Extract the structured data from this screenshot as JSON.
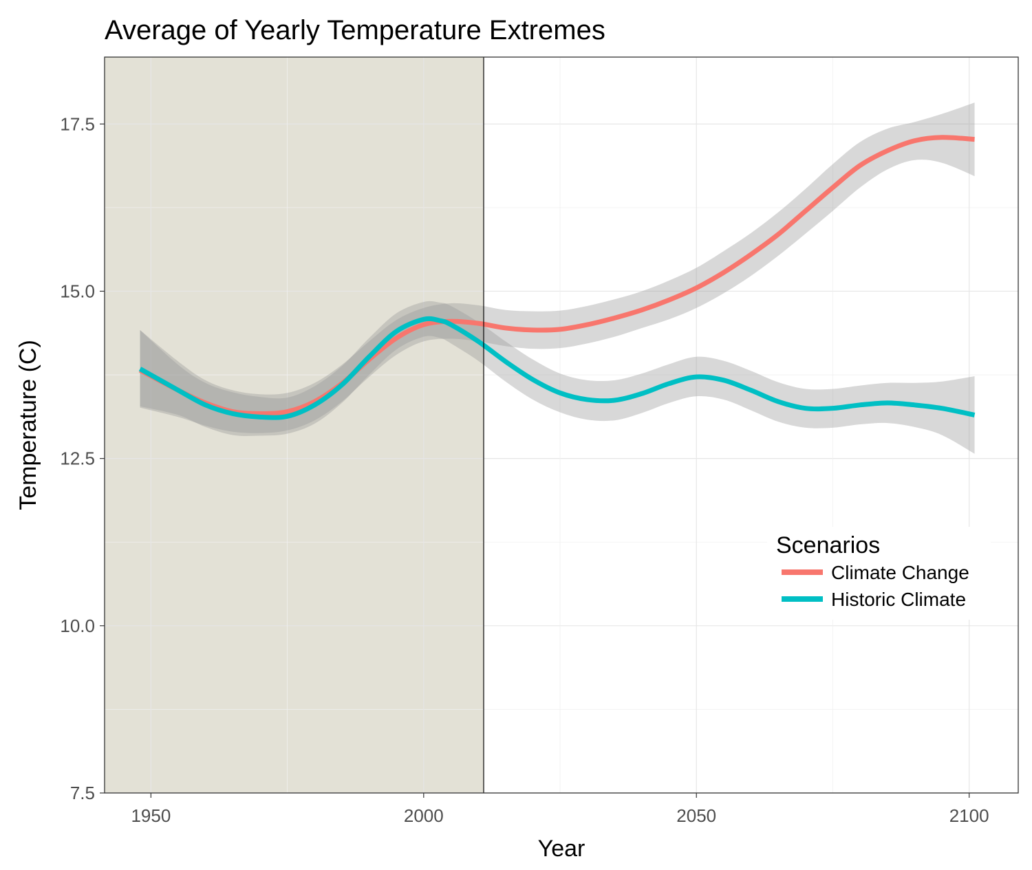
{
  "chart_data": {
    "type": "line",
    "title": "Average of Yearly Temperature Extremes",
    "xlabel": "Year",
    "ylabel": "Temperature (C)",
    "xlim": [
      1941.5,
      2109
    ],
    "ylim": [
      7.5,
      18.5
    ],
    "x_ticks": [
      1950,
      2000,
      2050,
      2100
    ],
    "x_tick_labels": [
      "1950",
      "2000",
      "2050",
      "2100"
    ],
    "y_ticks": [
      7.5,
      10.0,
      12.5,
      15.0,
      17.5
    ],
    "y_tick_labels": [
      "7.5",
      "10.0",
      "12.5",
      "15.0",
      "17.5"
    ],
    "grid": true,
    "shaded_region": {
      "from": 1941.5,
      "to": 2011,
      "color": "#e3e1d6"
    },
    "vertical_line": 2011,
    "legend": {
      "title": "Scenarios",
      "position": "right"
    },
    "series": [
      {
        "name": "Climate Change",
        "color": "#f8766d",
        "x": [
          1948,
          1955,
          1960,
          1965,
          1970,
          1975,
          1980,
          1985,
          1990,
          1995,
          2000,
          2005,
          2010,
          2015,
          2020,
          2025,
          2030,
          2035,
          2040,
          2045,
          2050,
          2055,
          2060,
          2065,
          2070,
          2075,
          2080,
          2085,
          2090,
          2095,
          2101
        ],
        "y": [
          13.82,
          13.52,
          13.33,
          13.2,
          13.17,
          13.2,
          13.35,
          13.62,
          13.98,
          14.3,
          14.5,
          14.55,
          14.52,
          14.45,
          14.42,
          14.43,
          14.5,
          14.6,
          14.72,
          14.87,
          15.05,
          15.28,
          15.55,
          15.85,
          16.2,
          16.55,
          16.88,
          17.1,
          17.25,
          17.3,
          17.27
        ],
        "ci_lower": [
          13.26,
          13.12,
          12.99,
          12.9,
          12.88,
          12.92,
          13.07,
          13.35,
          13.72,
          14.05,
          14.25,
          14.29,
          14.25,
          14.18,
          14.14,
          14.15,
          14.22,
          14.32,
          14.45,
          14.58,
          14.75,
          14.97,
          15.23,
          15.53,
          15.86,
          16.2,
          16.55,
          16.82,
          16.96,
          16.92,
          16.72
        ],
        "ci_upper": [
          14.42,
          13.95,
          13.67,
          13.52,
          13.46,
          13.48,
          13.63,
          13.9,
          14.25,
          14.57,
          14.75,
          14.82,
          14.79,
          14.72,
          14.7,
          14.71,
          14.78,
          14.88,
          15.0,
          15.16,
          15.35,
          15.6,
          15.87,
          16.18,
          16.53,
          16.9,
          17.23,
          17.43,
          17.53,
          17.65,
          17.82
        ]
      },
      {
        "name": "Historic Climate",
        "color": "#00bfc4",
        "x": [
          1948,
          1955,
          1960,
          1965,
          1970,
          1975,
          1980,
          1985,
          1990,
          1995,
          2000,
          2003,
          2005,
          2010,
          2015,
          2020,
          2025,
          2030,
          2035,
          2040,
          2045,
          2050,
          2055,
          2060,
          2065,
          2070,
          2075,
          2080,
          2085,
          2090,
          2095,
          2101
        ],
        "y": [
          13.84,
          13.52,
          13.3,
          13.17,
          13.12,
          13.13,
          13.3,
          13.6,
          14.02,
          14.4,
          14.58,
          14.56,
          14.5,
          14.25,
          13.95,
          13.68,
          13.48,
          13.38,
          13.37,
          13.47,
          13.62,
          13.72,
          13.67,
          13.52,
          13.35,
          13.25,
          13.25,
          13.3,
          13.33,
          13.3,
          13.25,
          13.15
        ],
        "ci_lower": [
          13.28,
          13.15,
          12.97,
          12.85,
          12.84,
          12.87,
          13.02,
          13.33,
          13.75,
          14.13,
          14.32,
          14.3,
          14.22,
          13.96,
          13.65,
          13.38,
          13.19,
          13.08,
          13.07,
          13.18,
          13.33,
          13.43,
          13.38,
          13.22,
          13.05,
          12.96,
          12.96,
          13.01,
          13.03,
          12.97,
          12.85,
          12.57
        ],
        "ci_upper": [
          14.42,
          13.9,
          13.63,
          13.49,
          13.42,
          13.41,
          13.58,
          13.88,
          14.3,
          14.67,
          14.84,
          14.83,
          14.78,
          14.54,
          14.25,
          13.98,
          13.77,
          13.67,
          13.67,
          13.77,
          13.91,
          14.02,
          13.96,
          13.81,
          13.64,
          13.54,
          13.54,
          13.59,
          13.63,
          13.63,
          13.65,
          13.73
        ]
      }
    ]
  }
}
